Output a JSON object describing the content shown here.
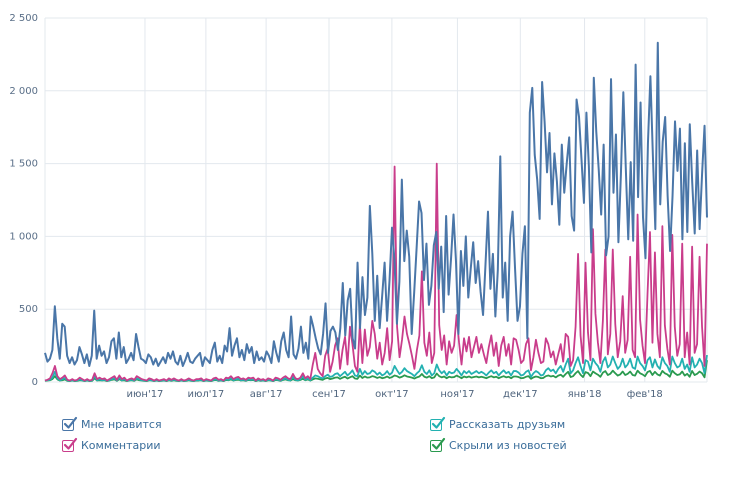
{
  "chart_data": {
    "type": "line",
    "ylim": [
      0,
      2500
    ],
    "yticks": [
      "0",
      "500",
      "1 000",
      "1 500",
      "2 000",
      "2 500"
    ],
    "ytick_values": [
      0,
      500,
      1000,
      1500,
      2000,
      2500
    ],
    "month_labels": [
      "июн'17",
      "июл'17",
      "авг'17",
      "сен'17",
      "окт'17",
      "ноя'17",
      "дек'17",
      "янв'18",
      "фев'18"
    ],
    "month_positions": [
      0.151,
      0.243,
      0.334,
      0.429,
      0.524,
      0.623,
      0.718,
      0.815,
      0.906
    ],
    "grid": true,
    "legend_position": "bottom",
    "n_points": 275,
    "series": [
      {
        "name": "Мне нравится",
        "color": "#4a76a8",
        "values": [
          200,
          140,
          160,
          220,
          520,
          300,
          160,
          400,
          380,
          180,
          130,
          170,
          120,
          150,
          240,
          190,
          130,
          190,
          110,
          180,
          490,
          160,
          250,
          180,
          210,
          130,
          170,
          280,
          300,
          160,
          340,
          170,
          240,
          130,
          160,
          200,
          150,
          330,
          240,
          160,
          150,
          130,
          190,
          170,
          120,
          160,
          110,
          140,
          170,
          130,
          200,
          160,
          210,
          140,
          120,
          180,
          110,
          150,
          200,
          140,
          130,
          160,
          180,
          200,
          110,
          170,
          150,
          130,
          220,
          270,
          140,
          180,
          130,
          250,
          210,
          370,
          180,
          250,
          300,
          170,
          220,
          150,
          260,
          200,
          240,
          130,
          210,
          150,
          170,
          140,
          210,
          180,
          130,
          280,
          200,
          140,
          280,
          340,
          220,
          170,
          450,
          190,
          160,
          230,
          380,
          200,
          270,
          160,
          450,
          380,
          300,
          230,
          190,
          330,
          540,
          200,
          350,
          380,
          340,
          220,
          370,
          680,
          320,
          560,
          640,
          300,
          230,
          820,
          370,
          720,
          460,
          580,
          1210,
          880,
          420,
          730,
          370,
          590,
          820,
          420,
          700,
          1060,
          840,
          400,
          690,
          1390,
          830,
          1040,
          860,
          330,
          610,
          920,
          1240,
          1160,
          700,
          950,
          530,
          660,
          940,
          1030,
          640,
          930,
          480,
          1140,
          600,
          850,
          1150,
          830,
          330,
          900,
          660,
          1000,
          580,
          780,
          960,
          680,
          830,
          620,
          460,
          810,
          1170,
          640,
          880,
          450,
          770,
          1550,
          580,
          820,
          420,
          1000,
          1170,
          780,
          420,
          520,
          880,
          1070,
          300,
          1850,
          2020,
          1560,
          1390,
          1120,
          2060,
          1790,
          1440,
          1710,
          1220,
          1570,
          1380,
          1080,
          1630,
          1300,
          1500,
          1680,
          1140,
          1040,
          1940,
          1820,
          1530,
          1230,
          1850,
          1480,
          890,
          2090,
          1720,
          1460,
          1150,
          1630,
          870,
          1000,
          2080,
          1300,
          1700,
          960,
          1420,
          1990,
          1470,
          980,
          1510,
          970,
          2180,
          1270,
          1920,
          1130,
          850,
          1640,
          2100,
          1560,
          1050,
          2330,
          1220,
          1650,
          1820,
          1280,
          900,
          1280,
          1790,
          1450,
          1740,
          980,
          1640,
          1030,
          1770,
          1370,
          1020,
          1590,
          1050,
          1430,
          1760,
          1130
        ],
        "anchor_x": [
          0,
          0.015,
          0.03,
          0.045,
          0.06,
          0.075,
          0.09,
          0.1,
          0.12,
          0.135,
          0.15,
          0.165,
          0.18,
          0.195,
          0.21,
          0.225,
          0.24,
          0.255,
          0.27,
          0.285,
          0.3,
          0.315,
          0.33,
          0.345,
          0.36,
          0.375,
          0.39,
          0.405,
          0.42,
          0.435,
          0.45,
          0.465,
          0.48,
          0.495,
          0.51,
          0.525,
          0.54,
          0.555,
          0.57,
          0.585,
          0.6,
          0.615,
          0.63,
          0.645,
          0.66,
          0.675,
          0.69,
          0.705,
          0.72,
          0.735,
          0.75,
          0.765,
          0.78,
          0.795,
          0.81,
          0.825,
          0.84,
          0.855,
          0.87,
          0.885,
          0.9,
          0.915,
          0.93,
          0.945,
          0.96,
          0.975,
          0.99,
          1
        ]
      },
      {
        "name": "Комментарии",
        "color": "#c93d8b",
        "values": [
          10,
          15,
          25,
          60,
          110,
          40,
          20,
          30,
          45,
          15,
          10,
          20,
          10,
          15,
          30,
          20,
          10,
          20,
          10,
          15,
          60,
          20,
          30,
          20,
          25,
          10,
          20,
          30,
          40,
          15,
          45,
          20,
          30,
          10,
          20,
          25,
          15,
          40,
          30,
          20,
          15,
          10,
          25,
          20,
          10,
          20,
          10,
          15,
          20,
          10,
          25,
          15,
          25,
          15,
          10,
          20,
          10,
          15,
          25,
          15,
          10,
          20,
          20,
          25,
          10,
          20,
          15,
          10,
          25,
          30,
          15,
          20,
          10,
          30,
          25,
          40,
          20,
          30,
          35,
          20,
          25,
          15,
          30,
          25,
          30,
          10,
          25,
          15,
          20,
          10,
          25,
          20,
          10,
          30,
          25,
          15,
          30,
          40,
          25,
          20,
          55,
          25,
          20,
          30,
          60,
          25,
          40,
          20,
          120,
          200,
          90,
          60,
          40,
          180,
          230,
          70,
          140,
          250,
          300,
          90,
          220,
          310,
          120,
          380,
          260,
          110,
          70,
          400,
          130,
          360,
          180,
          240,
          420,
          330,
          160,
          270,
          120,
          200,
          370,
          150,
          280,
          1480,
          380,
          170,
          290,
          450,
          330,
          260,
          180,
          90,
          220,
          320,
          760,
          270,
          180,
          340,
          130,
          200,
          1500,
          390,
          220,
          320,
          120,
          280,
          200,
          250,
          460,
          270,
          120,
          300,
          210,
          310,
          170,
          240,
          310,
          200,
          260,
          190,
          130,
          240,
          320,
          180,
          270,
          110,
          250,
          310,
          180,
          260,
          120,
          300,
          290,
          220,
          130,
          150,
          260,
          300,
          80,
          170,
          290,
          200,
          130,
          140,
          300,
          260,
          170,
          210,
          120,
          190,
          260,
          140,
          330,
          310,
          110,
          150,
          380,
          880,
          320,
          130,
          820,
          340,
          150,
          1050,
          470,
          270,
          130,
          420,
          910,
          190,
          330,
          910,
          400,
          170,
          280,
          590,
          200,
          290,
          860,
          220,
          170,
          1150,
          430,
          250,
          130,
          600,
          1030,
          270,
          890,
          330,
          170,
          1070,
          390,
          230,
          120,
          1010,
          380,
          180,
          260,
          950,
          170,
          340,
          120,
          930,
          200,
          260,
          860,
          380,
          110,
          950
        ],
        "anchor_x": []
      },
      {
        "name": "Рассказать друзьям",
        "color": "#23b1b1",
        "values": [
          10,
          12,
          15,
          30,
          70,
          25,
          12,
          18,
          28,
          10,
          8,
          12,
          8,
          10,
          18,
          12,
          8,
          12,
          8,
          10,
          40,
          12,
          18,
          12,
          15,
          8,
          12,
          20,
          25,
          10,
          28,
          12,
          18,
          8,
          12,
          15,
          10,
          25,
          18,
          12,
          10,
          8,
          15,
          12,
          8,
          12,
          8,
          10,
          12,
          8,
          15,
          10,
          15,
          10,
          8,
          12,
          8,
          10,
          15,
          10,
          8,
          12,
          12,
          15,
          8,
          12,
          10,
          8,
          15,
          18,
          10,
          12,
          8,
          18,
          15,
          25,
          12,
          18,
          22,
          12,
          15,
          10,
          18,
          15,
          18,
          8,
          15,
          10,
          12,
          8,
          15,
          12,
          8,
          18,
          15,
          10,
          18,
          25,
          15,
          12,
          35,
          15,
          12,
          18,
          40,
          15,
          25,
          12,
          30,
          45,
          40,
          30,
          25,
          40,
          50,
          35,
          40,
          55,
          60,
          40,
          55,
          70,
          45,
          60,
          80,
          45,
          40,
          90,
          50,
          75,
          55,
          60,
          80,
          70,
          50,
          65,
          45,
          55,
          75,
          50,
          65,
          110,
          80,
          55,
          70,
          95,
          75,
          65,
          55,
          40,
          60,
          75,
          115,
          70,
          55,
          80,
          45,
          60,
          120,
          80,
          60,
          75,
          45,
          70,
          60,
          65,
          90,
          70,
          45,
          75,
          60,
          75,
          55,
          65,
          75,
          60,
          70,
          60,
          45,
          65,
          80,
          60,
          70,
          45,
          65,
          80,
          60,
          70,
          45,
          75,
          75,
          65,
          45,
          50,
          70,
          80,
          35,
          60,
          75,
          65,
          45,
          50,
          80,
          95,
          75,
          85,
          60,
          90,
          110,
          70,
          120,
          160,
          60,
          80,
          130,
          170,
          110,
          60,
          150,
          140,
          80,
          160,
          130,
          110,
          70,
          140,
          170,
          100,
          120,
          175,
          130,
          90,
          110,
          160,
          100,
          120,
          160,
          100,
          90,
          175,
          130,
          110,
          80,
          150,
          170,
          100,
          155,
          110,
          90,
          170,
          130,
          110,
          70,
          175,
          130,
          100,
          110,
          160,
          90,
          120,
          70,
          170,
          100,
          120,
          160,
          130,
          60,
          185
        ],
        "anchor_x": []
      },
      {
        "name": "Скрыли из новостей",
        "color": "#2a9a4f",
        "values": [
          8,
          10,
          12,
          20,
          40,
          18,
          10,
          12,
          18,
          8,
          6,
          10,
          6,
          8,
          12,
          10,
          6,
          10,
          6,
          8,
          25,
          10,
          12,
          10,
          12,
          6,
          10,
          15,
          18,
          8,
          20,
          10,
          12,
          6,
          10,
          12,
          8,
          18,
          12,
          10,
          8,
          6,
          12,
          10,
          6,
          10,
          6,
          8,
          10,
          6,
          12,
          8,
          12,
          8,
          6,
          10,
          6,
          8,
          12,
          8,
          6,
          10,
          10,
          12,
          6,
          10,
          8,
          6,
          12,
          14,
          8,
          10,
          6,
          14,
          12,
          18,
          10,
          14,
          16,
          10,
          12,
          8,
          14,
          12,
          14,
          6,
          12,
          8,
          10,
          6,
          12,
          10,
          6,
          14,
          12,
          8,
          14,
          18,
          12,
          10,
          20,
          12,
          10,
          14,
          22,
          12,
          18,
          10,
          18,
          25,
          22,
          18,
          15,
          24,
          28,
          20,
          24,
          30,
          32,
          22,
          30,
          36,
          24,
          32,
          40,
          24,
          22,
          44,
          28,
          38,
          30,
          32,
          40,
          36,
          28,
          34,
          26,
          30,
          38,
          28,
          34,
          45,
          40,
          30,
          36,
          46,
          38,
          34,
          30,
          24,
          32,
          38,
          55,
          36,
          30,
          40,
          26,
          32,
          58,
          40,
          32,
          38,
          26,
          36,
          32,
          34,
          44,
          36,
          26,
          38,
          32,
          38,
          30,
          34,
          38,
          32,
          36,
          32,
          26,
          34,
          40,
          32,
          36,
          26,
          34,
          40,
          32,
          36,
          26,
          38,
          38,
          34,
          26,
          28,
          36,
          40,
          22,
          32,
          38,
          34,
          26,
          28,
          40,
          45,
          38,
          42,
          32,
          44,
          50,
          36,
          55,
          70,
          34,
          40,
          60,
          75,
          50,
          34,
          68,
          62,
          40,
          72,
          60,
          50,
          36,
          64,
          75,
          48,
          56,
          78,
          60,
          44,
          52,
          72,
          48,
          56,
          72,
          48,
          44,
          78,
          60,
          52,
          40,
          68,
          76,
          48,
          70,
          52,
          44,
          76,
          60,
          52,
          36,
          78,
          60,
          48,
          52,
          72,
          44,
          56,
          36,
          76,
          48,
          56,
          72,
          60,
          32,
          150
        ],
        "anchor_x": []
      }
    ]
  }
}
